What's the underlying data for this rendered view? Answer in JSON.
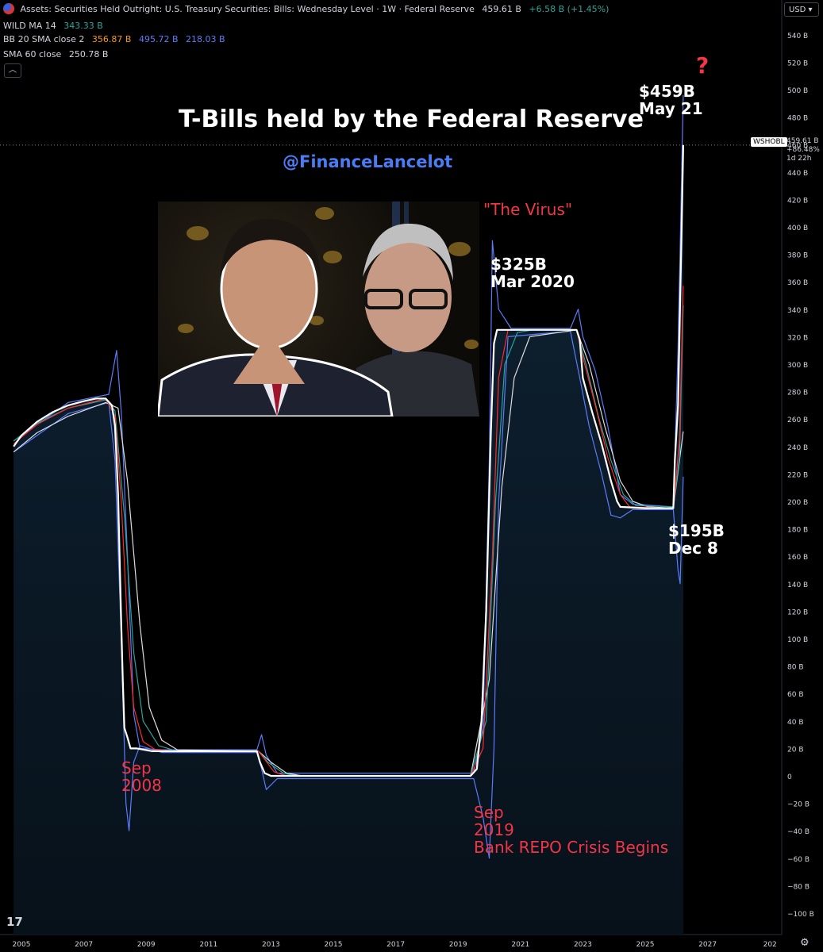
{
  "header": {
    "title": "Assets: Securities Held Outright: U.S. Treasury Securities: Bills: Wednesday Level · 1W · Federal Reserve",
    "last": "459.61 B",
    "change": "+6.58 B (+1.45%)",
    "indicators": [
      {
        "name": "WILD MA 14",
        "values": [
          "343.33 B"
        ],
        "colors": [
          "#26a69a"
        ]
      },
      {
        "name": "BB 20 SMA close 2",
        "values": [
          "356.87 B",
          "495.72 B",
          "218.03 B"
        ],
        "colors": [
          "#ff9800",
          "#5b7cfa",
          "#5b7cfa"
        ]
      },
      {
        "name": "SMA 60 close",
        "values": [
          "250.78 B"
        ],
        "colors": [
          "#d1d4dc"
        ]
      }
    ]
  },
  "currency": "USD",
  "collapse_icon": "chevron-up-icon",
  "chart_data": {
    "type": "line",
    "title": "T-Bills held by the Federal Reserve",
    "handle": "@FinanceLancelot",
    "xlim": [
      2004.75,
      2027.8
    ],
    "ylim": [
      -110,
      550
    ],
    "x_ticks": [
      "2005",
      "2007",
      "2009",
      "2011",
      "2013",
      "2015",
      "2017",
      "2019",
      "2021",
      "2023",
      "2025",
      "2027",
      "202"
    ],
    "y_ticks": [
      "540 B",
      "520 B",
      "500 B",
      "480 B",
      "460 B",
      "440 B",
      "420 B",
      "400 B",
      "380 B",
      "360 B",
      "340 B",
      "320 B",
      "300 B",
      "280 B",
      "260 B",
      "240 B",
      "220 B",
      "200 B",
      "180 B",
      "160 B",
      "140 B",
      "120 B",
      "100 B",
      "80 B",
      "60 B",
      "40 B",
      "20 B",
      "0",
      "−20 B",
      "−40 B",
      "−60 B",
      "−80 B",
      "−100 B"
    ],
    "series": [
      {
        "name": "WSHOBL",
        "color": "#ffffff",
        "values": [
          [
            2004.75,
            240
          ],
          [
            2005.0,
            248
          ],
          [
            2005.5,
            258
          ],
          [
            2006.0,
            265
          ],
          [
            2006.5,
            270
          ],
          [
            2007.0,
            273
          ],
          [
            2007.4,
            275
          ],
          [
            2007.7,
            275
          ],
          [
            2007.9,
            270
          ],
          [
            2008.0,
            255
          ],
          [
            2008.1,
            205
          ],
          [
            2008.2,
            110
          ],
          [
            2008.25,
            70
          ],
          [
            2008.3,
            35
          ],
          [
            2008.4,
            28
          ],
          [
            2008.5,
            20
          ],
          [
            2008.7,
            20
          ],
          [
            2009.2,
            18
          ],
          [
            2010.0,
            18
          ],
          [
            2011.0,
            18
          ],
          [
            2012.0,
            18
          ],
          [
            2012.55,
            18
          ],
          [
            2012.65,
            10
          ],
          [
            2012.8,
            2
          ],
          [
            2013.0,
            0
          ],
          [
            2014.0,
            0
          ],
          [
            2016.0,
            0
          ],
          [
            2018.0,
            0
          ],
          [
            2019.0,
            0
          ],
          [
            2019.4,
            0
          ],
          [
            2019.6,
            5
          ],
          [
            2019.75,
            40
          ],
          [
            2019.9,
            120
          ],
          [
            2020.05,
            250
          ],
          [
            2020.15,
            315
          ],
          [
            2020.25,
            325
          ],
          [
            2021.0,
            325
          ],
          [
            2022.0,
            325
          ],
          [
            2022.8,
            325
          ],
          [
            2022.9,
            318
          ],
          [
            2023.0,
            290
          ],
          [
            2023.3,
            265
          ],
          [
            2023.6,
            242
          ],
          [
            2023.9,
            215
          ],
          [
            2024.1,
            200
          ],
          [
            2024.2,
            196
          ],
          [
            2025.0,
            195
          ],
          [
            2025.6,
            195
          ],
          [
            2025.9,
            195
          ],
          [
            2025.95,
            230
          ],
          [
            2026.05,
            270
          ],
          [
            2026.15,
            380
          ],
          [
            2026.22,
            459.6
          ]
        ]
      },
      {
        "name": "BB 20 SMA close 2",
        "color": "#ff2a2a",
        "values": [
          [
            2004.75,
            242
          ],
          [
            2005.5,
            256
          ],
          [
            2006.5,
            268
          ],
          [
            2007.7,
            275
          ],
          [
            2008.0,
            262
          ],
          [
            2008.2,
            200
          ],
          [
            2008.4,
            110
          ],
          [
            2008.6,
            50
          ],
          [
            2008.9,
            25
          ],
          [
            2009.3,
            19
          ],
          [
            2010.0,
            18
          ],
          [
            2012.6,
            18
          ],
          [
            2012.8,
            12
          ],
          [
            2013.1,
            3
          ],
          [
            2013.5,
            0
          ],
          [
            2019.4,
            0
          ],
          [
            2019.8,
            20
          ],
          [
            2020.1,
            160
          ],
          [
            2020.3,
            290
          ],
          [
            2020.6,
            325
          ],
          [
            2022.8,
            325
          ],
          [
            2023.0,
            305
          ],
          [
            2023.4,
            270
          ],
          [
            2023.8,
            232
          ],
          [
            2024.2,
            205
          ],
          [
            2024.5,
            196
          ],
          [
            2025.9,
            195
          ],
          [
            2026.1,
            245
          ],
          [
            2026.22,
            357
          ]
        ]
      },
      {
        "name": "WILD MA 14",
        "color": "#26a69a",
        "values": [
          [
            2004.75,
            244
          ],
          [
            2005.5,
            257
          ],
          [
            2006.5,
            268
          ],
          [
            2007.7,
            274
          ],
          [
            2008.0,
            266
          ],
          [
            2008.3,
            190
          ],
          [
            2008.6,
            90
          ],
          [
            2008.9,
            40
          ],
          [
            2009.4,
            22
          ],
          [
            2010.0,
            18
          ],
          [
            2012.6,
            18
          ],
          [
            2012.9,
            10
          ],
          [
            2013.4,
            2
          ],
          [
            2013.8,
            0
          ],
          [
            2019.4,
            0
          ],
          [
            2019.9,
            40
          ],
          [
            2020.2,
            200
          ],
          [
            2020.5,
            300
          ],
          [
            2020.9,
            323
          ],
          [
            2021.4,
            325
          ],
          [
            2022.8,
            325
          ],
          [
            2023.1,
            300
          ],
          [
            2023.5,
            262
          ],
          [
            2023.9,
            230
          ],
          [
            2024.3,
            205
          ],
          [
            2024.7,
            197
          ],
          [
            2025.9,
            196
          ],
          [
            2026.1,
            232
          ],
          [
            2026.22,
            343
          ]
        ]
      },
      {
        "name": "SMA 60 close",
        "color": "#dedede",
        "values": [
          [
            2004.75,
            236
          ],
          [
            2005.5,
            250
          ],
          [
            2006.5,
            262
          ],
          [
            2007.7,
            272
          ],
          [
            2008.1,
            268
          ],
          [
            2008.4,
            215
          ],
          [
            2008.8,
            110
          ],
          [
            2009.1,
            50
          ],
          [
            2009.5,
            26
          ],
          [
            2010.0,
            19
          ],
          [
            2012.6,
            18
          ],
          [
            2013.0,
            10
          ],
          [
            2013.5,
            2
          ],
          [
            2014.0,
            0
          ],
          [
            2019.4,
            0
          ],
          [
            2020.0,
            70
          ],
          [
            2020.4,
            210
          ],
          [
            2020.8,
            290
          ],
          [
            2021.3,
            320
          ],
          [
            2022.8,
            325
          ],
          [
            2023.2,
            300
          ],
          [
            2023.7,
            255
          ],
          [
            2024.2,
            215
          ],
          [
            2024.6,
            200
          ],
          [
            2025.1,
            196
          ],
          [
            2025.9,
            195
          ],
          [
            2026.22,
            251
          ]
        ]
      },
      {
        "name": "BB upper",
        "color": "#5b7cfa",
        "values": [
          [
            2004.75,
            244
          ],
          [
            2006.5,
            272
          ],
          [
            2007.8,
            278
          ],
          [
            2008.05,
            310
          ],
          [
            2008.2,
            265
          ],
          [
            2008.4,
            160
          ],
          [
            2008.6,
            45
          ],
          [
            2008.8,
            20
          ],
          [
            2009.5,
            19
          ],
          [
            2012.55,
            19
          ],
          [
            2012.7,
            30
          ],
          [
            2012.85,
            15
          ],
          [
            2013.2,
            2
          ],
          [
            2019.5,
            2
          ],
          [
            2019.8,
            35
          ],
          [
            2020.0,
            230
          ],
          [
            2020.1,
            390
          ],
          [
            2020.3,
            340
          ],
          [
            2020.7,
            326
          ],
          [
            2022.6,
            326
          ],
          [
            2022.85,
            340
          ],
          [
            2023.0,
            320
          ],
          [
            2023.4,
            295
          ],
          [
            2023.8,
            255
          ],
          [
            2024.2,
            205
          ],
          [
            2024.6,
            198
          ],
          [
            2025.9,
            196
          ],
          [
            2026.05,
            310
          ],
          [
            2026.22,
            496
          ]
        ]
      },
      {
        "name": "BB lower",
        "color": "#5b7cfa",
        "values": [
          [
            2004.75,
            236
          ],
          [
            2006.5,
            264
          ],
          [
            2007.8,
            272
          ],
          [
            2008.0,
            230
          ],
          [
            2008.2,
            100
          ],
          [
            2008.35,
            -20
          ],
          [
            2008.45,
            -40
          ],
          [
            2008.6,
            10
          ],
          [
            2008.8,
            22
          ],
          [
            2009.5,
            17
          ],
          [
            2012.55,
            17
          ],
          [
            2012.7,
            5
          ],
          [
            2012.85,
            -10
          ],
          [
            2013.2,
            -2
          ],
          [
            2019.5,
            -2
          ],
          [
            2019.8,
            -30
          ],
          [
            2020.0,
            -60
          ],
          [
            2020.15,
            20
          ],
          [
            2020.3,
            200
          ],
          [
            2020.6,
            320
          ],
          [
            2022.6,
            324
          ],
          [
            2022.9,
            290
          ],
          [
            2023.2,
            255
          ],
          [
            2023.6,
            220
          ],
          [
            2023.9,
            190
          ],
          [
            2024.2,
            188
          ],
          [
            2024.6,
            194
          ],
          [
            2025.9,
            194
          ],
          [
            2026.05,
            150
          ],
          [
            2026.12,
            140
          ],
          [
            2026.22,
            218
          ]
        ]
      }
    ],
    "annotations": [
      {
        "text": "$459B\nMay 21",
        "color": "white",
        "x": 2024.8,
        "y": 505
      },
      {
        "text": "$325B\nMar 2020",
        "color": "white",
        "x": 2020.05,
        "y": 379
      },
      {
        "text": "$195B\nDec 8",
        "color": "white",
        "x": 2025.75,
        "y": 185
      },
      {
        "text": "Sep\n2008",
        "color": "red",
        "x": 2008.2,
        "y": 12
      },
      {
        "text": "Sep\n2019\nBank REPO Crisis Begins",
        "color": "red",
        "x": 2019.5,
        "y": -20
      }
    ],
    "virus_label": "\"The Virus\"",
    "question_mark": "?",
    "last_price": {
      "symbol": "WSHOBL",
      "value": "459.61 B",
      "change": "+86.48%",
      "countdown": "1d 22h"
    }
  }
}
